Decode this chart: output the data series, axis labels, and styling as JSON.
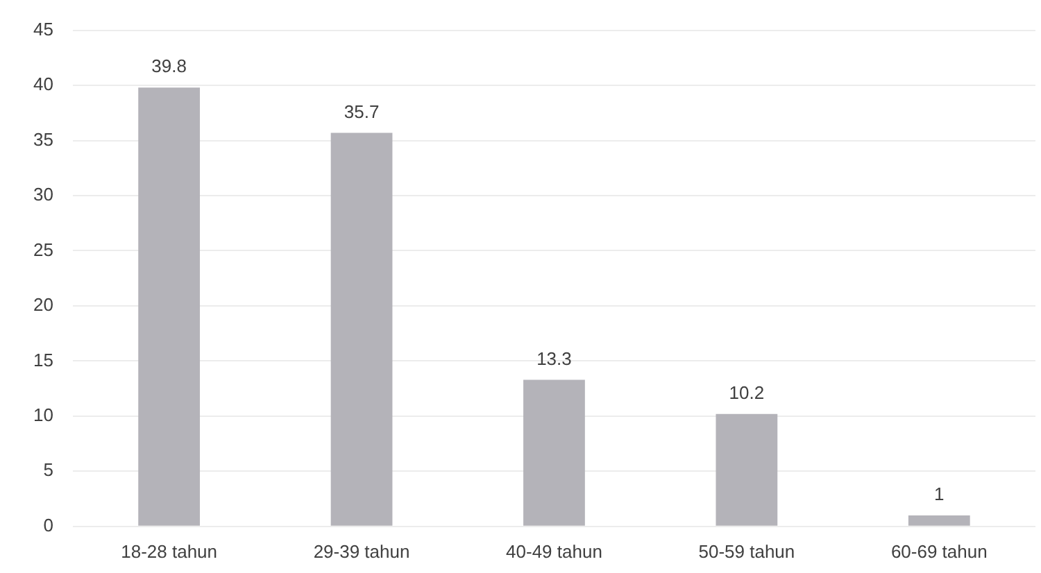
{
  "chart_data": {
    "type": "bar",
    "categories": [
      "18-28 tahun",
      "29-39 tahun",
      "40-49 tahun",
      "50-59 tahun",
      "60-69 tahun"
    ],
    "values": [
      39.8,
      35.7,
      13.3,
      10.2,
      1
    ],
    "color": "#b4b3b9",
    "ylim": [
      0,
      45
    ],
    "yticks": [
      0,
      5,
      10,
      15,
      20,
      25,
      30,
      35,
      40,
      45
    ],
    "grid": "y",
    "data_labels": true
  }
}
